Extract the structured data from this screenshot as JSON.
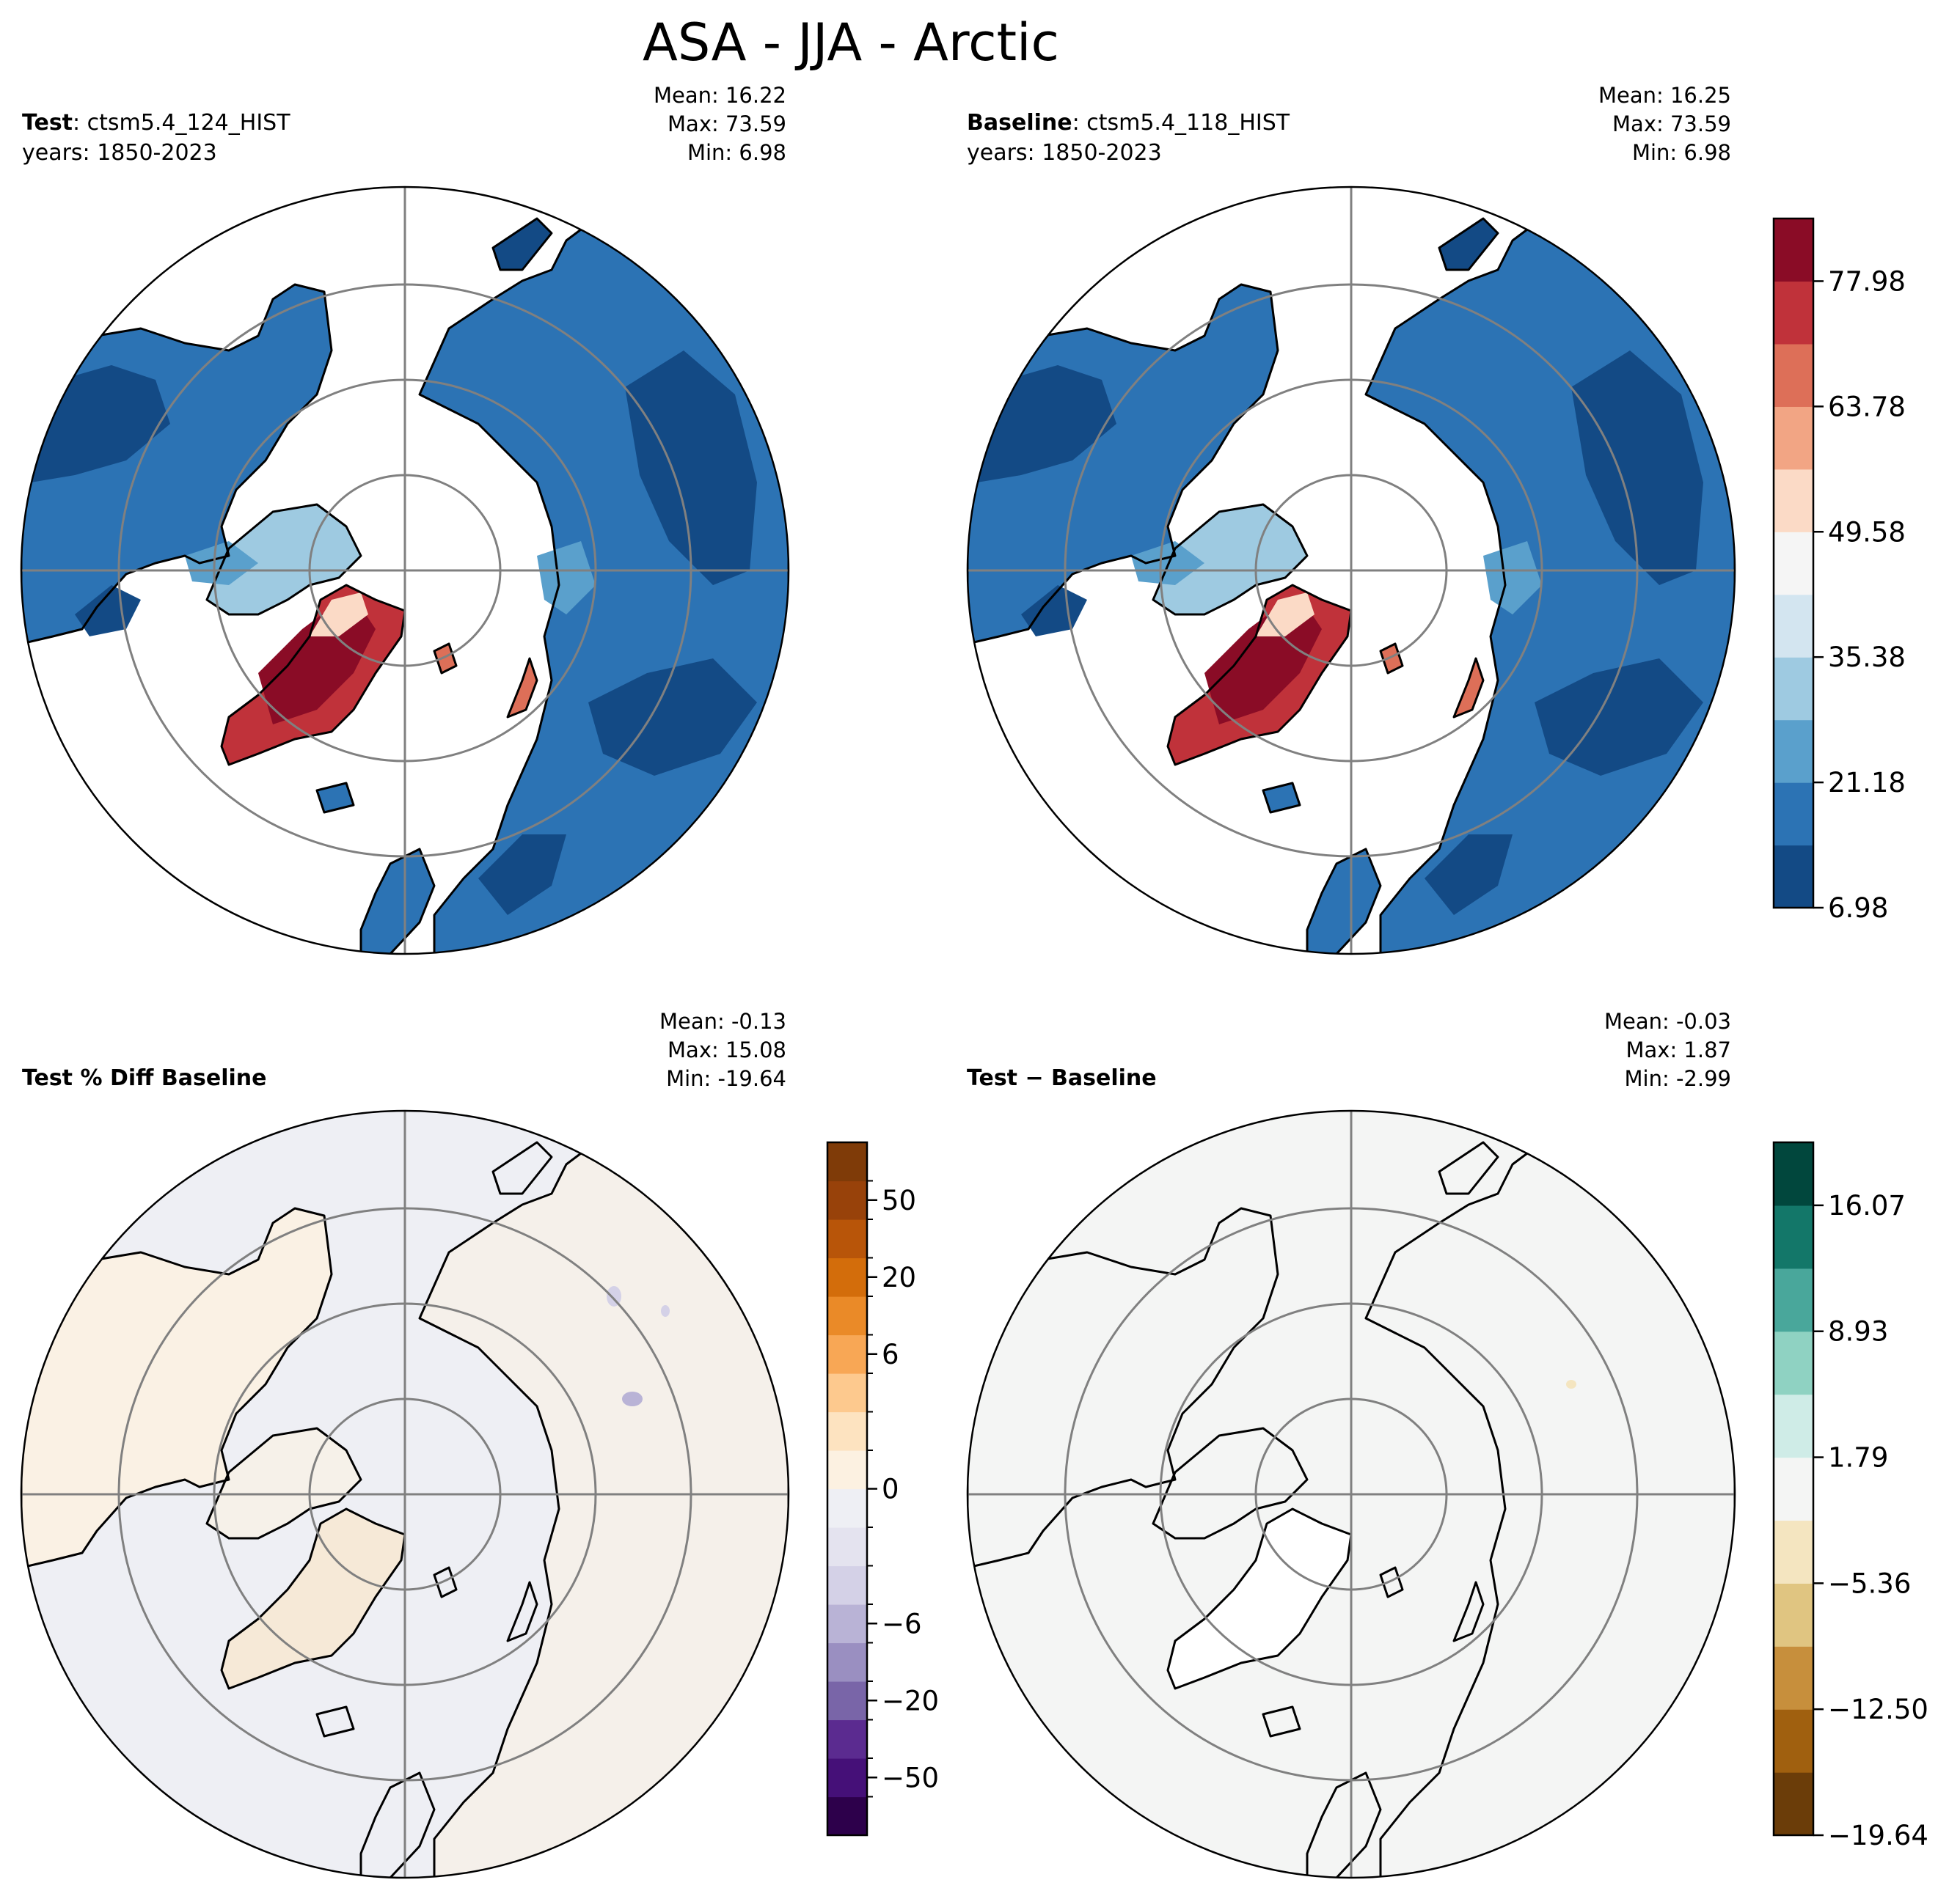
{
  "figure": {
    "title": "ASA - JJA - Arctic"
  },
  "colors": {
    "graticule": "#808080",
    "coast": "#000000",
    "ocean_white": "#ffffff",
    "rdbu": [
      "#134a85",
      "#2c73b4",
      "#5aa0cc",
      "#9ecae1",
      "#d3e5f0",
      "#f5f5f5",
      "#fbdac6",
      "#f2a584",
      "#dd6f58",
      "#c0323a",
      "#8a0c26"
    ],
    "puor": [
      "#2d004b",
      "#451078",
      "#5b2b90",
      "#7965a8",
      "#9a8fc1",
      "#b9b3d6",
      "#d4d1e7",
      "#e4e3ef",
      "#eeeff4",
      "#fcf1e1",
      "#fde3c0",
      "#fdc98e",
      "#f8a755",
      "#ea8a28",
      "#d36d0b",
      "#b85509",
      "#98420a",
      "#7f3b08"
    ],
    "brbg": [
      "#6b3d09",
      "#a0600f",
      "#c78f3c",
      "#e0c581",
      "#f4e5c0",
      "#f4f5f4",
      "#cfece7",
      "#8fd2c2",
      "#49a79b",
      "#137769",
      "#01473d"
    ]
  },
  "panels": [
    {
      "id": "test",
      "label_bold": "Test",
      "label_rest": ": ctsm5.4_124_HIST",
      "years": "years: 1850-2023",
      "stats": [
        "Mean: 16.22",
        "Max: 73.59",
        "Min:  6.98"
      ]
    },
    {
      "id": "baseline",
      "label_bold": "Baseline",
      "label_rest": ": ctsm5.4_118_HIST",
      "years": "years: 1850-2023",
      "stats": [
        "Mean: 16.25",
        "Max: 73.59",
        "Min:  6.98"
      ]
    },
    {
      "id": "pctdiff",
      "label_bold": "Test % Diff Baseline",
      "label_rest": "",
      "years": "",
      "stats": [
        "Mean: -0.13",
        "Max: 15.08",
        "Min: -19.64"
      ]
    },
    {
      "id": "diff",
      "label_bold": "Test − Baseline",
      "label_rest": "",
      "years": "",
      "stats": [
        "Mean: -0.03",
        "Max:  1.87",
        "Min: -2.99"
      ]
    }
  ],
  "chart_data": [
    {
      "type": "heatmap",
      "panel": "test",
      "projection": "north polar stereographic",
      "variable": "ASA",
      "season": "JJA",
      "region": "Arctic",
      "colorbar": {
        "ticks": [
          "77.98",
          "63.78",
          "49.58",
          "35.38",
          "21.18",
          "6.98"
        ],
        "tick_values": [
          77.98,
          63.78,
          49.58,
          35.38,
          21.18,
          6.98
        ],
        "vmin": 6.98,
        "vmax": 85.08,
        "levels": 11,
        "shared_with": "baseline"
      },
      "summary": {
        "mean": 16.22,
        "max": 73.59,
        "min": 6.98
      }
    },
    {
      "type": "heatmap",
      "panel": "baseline",
      "projection": "north polar stereographic",
      "summary": {
        "mean": 16.25,
        "max": 73.59,
        "min": 6.98
      }
    },
    {
      "type": "heatmap",
      "panel": "pctdiff",
      "projection": "north polar stereographic",
      "colorbar": {
        "ticks": [
          "50",
          "20",
          "6",
          "0",
          "−6",
          "−20",
          "−50"
        ],
        "tick_values": [
          50,
          20,
          6,
          0,
          -6,
          -20,
          -50
        ],
        "levels": 18
      },
      "summary": {
        "mean": -0.13,
        "max": 15.08,
        "min": -19.64
      }
    },
    {
      "type": "heatmap",
      "panel": "diff",
      "projection": "north polar stereographic",
      "colorbar": {
        "ticks": [
          "16.07",
          "8.93",
          "1.79",
          "−5.36",
          "−12.50",
          "−19.64"
        ],
        "tick_values": [
          16.07,
          8.93,
          1.79,
          -5.36,
          -12.5,
          -19.64
        ],
        "vmin": -19.64,
        "vmax": 19.64,
        "levels": 11
      },
      "summary": {
        "mean": -0.03,
        "max": 1.87,
        "min": -2.99
      }
    }
  ]
}
